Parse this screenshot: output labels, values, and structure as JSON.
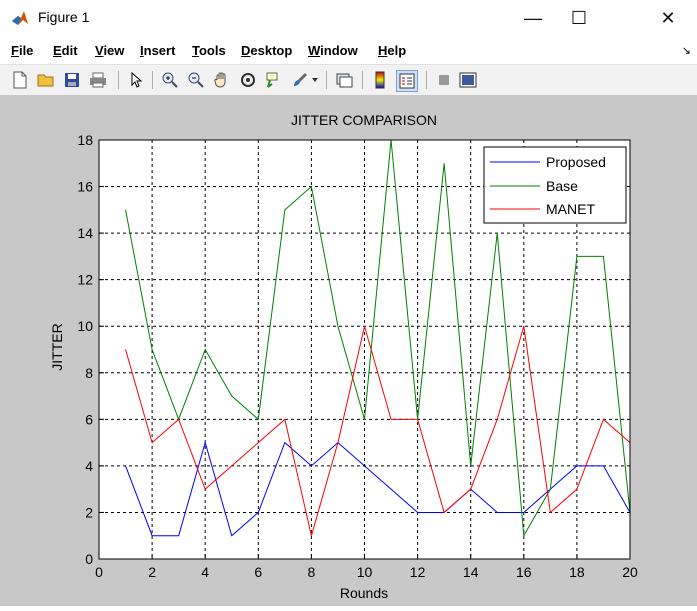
{
  "window": {
    "title": "Figure 1",
    "controls": {
      "minimize": "—",
      "maximize": "☐",
      "close": "✕"
    }
  },
  "menu": [
    {
      "key": "F",
      "rest": "ile"
    },
    {
      "key": "E",
      "rest": "dit"
    },
    {
      "key": "V",
      "rest": "iew"
    },
    {
      "key": "I",
      "rest": "nsert"
    },
    {
      "key": "T",
      "rest": "ools"
    },
    {
      "key": "D",
      "rest": "esktop"
    },
    {
      "key": "W",
      "rest": "indow"
    },
    {
      "key": "H",
      "rest": "elp"
    }
  ],
  "toolbar_icons": [
    "new-figure-icon",
    "open-file-icon",
    "save-icon",
    "print-icon",
    "pointer-icon",
    "zoom-in-icon",
    "zoom-out-icon",
    "pan-hand-icon",
    "rotate-3d-icon",
    "data-cursor-icon",
    "brush-icon",
    "link-plot-icon",
    "colorbar-icon",
    "legend-icon",
    "hide-plot-tools-icon",
    "show-plot-tools-icon"
  ],
  "colors": {
    "proposed": "#0000ff",
    "base": "#008000",
    "manet": "#ff0000",
    "figure_bg": "#c8c8c8"
  },
  "chart_data": {
    "type": "line",
    "title": "JITTER COMPARISON",
    "xlabel": "Rounds",
    "ylabel": "JITTER",
    "xlim": [
      0,
      20
    ],
    "ylim": [
      0,
      18
    ],
    "xticks": [
      0,
      2,
      4,
      6,
      8,
      10,
      12,
      14,
      16,
      18,
      20
    ],
    "yticks": [
      0,
      2,
      4,
      6,
      8,
      10,
      12,
      14,
      16,
      18
    ],
    "grid": true,
    "legend_position": "top-right",
    "x": [
      1,
      2,
      3,
      4,
      5,
      6,
      7,
      8,
      9,
      10,
      11,
      12,
      13,
      14,
      15,
      16,
      17,
      18,
      19,
      20
    ],
    "series": [
      {
        "name": "Proposed",
        "color": "#0000ff",
        "values": [
          4,
          1,
          1,
          5,
          1,
          2,
          5,
          4,
          5,
          4,
          3,
          2,
          2,
          3,
          2,
          2,
          3,
          4,
          4,
          2
        ]
      },
      {
        "name": "Base",
        "color": "#008000",
        "values": [
          15,
          9,
          6,
          9,
          7,
          6,
          15,
          16,
          10,
          6,
          18,
          6,
          17,
          4,
          14,
          1,
          3,
          13,
          13,
          2
        ]
      },
      {
        "name": "MANET",
        "color": "#ff0000",
        "values": [
          9,
          5,
          6,
          3,
          4,
          5,
          6,
          1,
          5,
          10,
          6,
          6,
          2,
          3,
          6,
          10,
          2,
          3,
          6,
          5
        ]
      }
    ]
  }
}
